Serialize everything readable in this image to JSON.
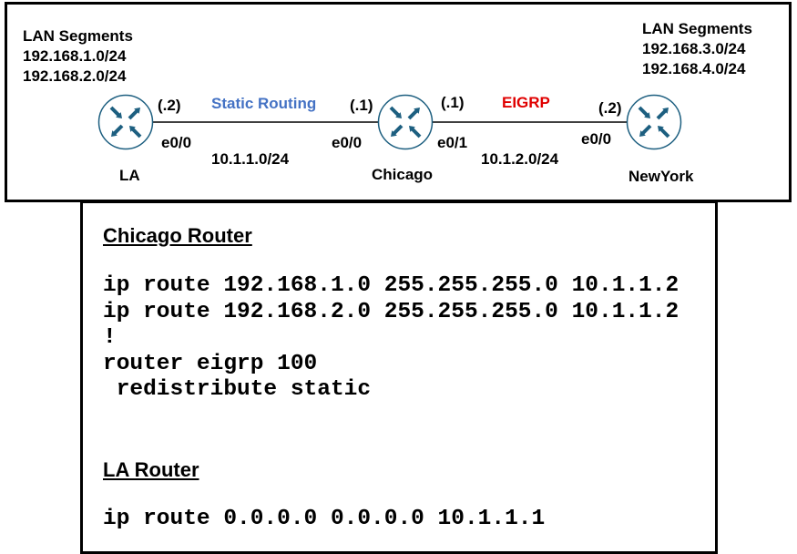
{
  "colors": {
    "router": "#1d5f80",
    "static": "#4472c4",
    "eigrp": "#e00000"
  },
  "topology": {
    "la_lans": {
      "title": "LAN Segments",
      "nets": [
        "192.168.1.0/24",
        "192.168.2.0/24"
      ]
    },
    "ny_lans": {
      "title": "LAN Segments",
      "nets": [
        "192.168.3.0/24",
        "192.168.4.0/24"
      ]
    },
    "routers": {
      "la": "LA",
      "chicago": "Chicago",
      "newyork": "NewYork"
    },
    "link1": {
      "protocol": "Static Routing",
      "subnet": "10.1.1.0/24",
      "la_ip": "(.2)",
      "la_if": "e0/0",
      "chi_ip": "(.1)",
      "chi_if": "e0/0"
    },
    "link2": {
      "protocol": "EIGRP",
      "subnet": "10.1.2.0/24",
      "chi_ip": "(.1)",
      "chi_if": "e0/1",
      "ny_ip": "(.2)",
      "ny_if": "e0/0"
    }
  },
  "config": {
    "chicago": {
      "title": "Chicago Router",
      "lines": [
        "ip route 192.168.1.0 255.255.255.0 10.1.1.2",
        "ip route 192.168.2.0 255.255.255.0 10.1.1.2",
        "!",
        "router eigrp 100",
        " redistribute static"
      ]
    },
    "la": {
      "title": "LA Router",
      "lines": [
        "ip route 0.0.0.0 0.0.0.0 10.1.1.1"
      ]
    }
  }
}
